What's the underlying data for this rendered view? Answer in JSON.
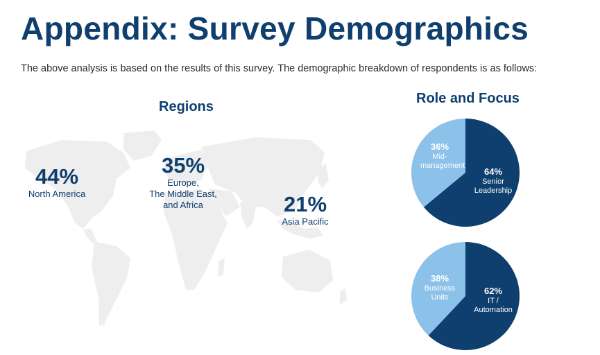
{
  "header": {
    "title": "Appendix: Survey Demographics",
    "subtitle": "The above analysis is based on the results of this survey. The demographic breakdown of respondents is as follows:"
  },
  "regions": {
    "title": "Regions",
    "items": [
      {
        "value": "44%",
        "label": "North America"
      },
      {
        "value": "35%",
        "label": "Europe,\nThe Middle East,\nand Africa"
      },
      {
        "value": "21%",
        "label": "Asia Pacific"
      }
    ]
  },
  "role_focus": {
    "title": "Role and Focus"
  },
  "colors": {
    "title": "#0e3f6e",
    "dark_slice": "#0e3f6e",
    "light_slice": "#8cc1ea",
    "map": "#eeeeee"
  },
  "chart_data": [
    {
      "type": "bar",
      "title": "Regions",
      "categories": [
        "North America",
        "Europe, The Middle East, and Africa",
        "Asia Pacific"
      ],
      "values": [
        44,
        35,
        21
      ],
      "unit": "%"
    },
    {
      "type": "pie",
      "slices": [
        {
          "label": "Mid-\nmanagement",
          "value": 36,
          "display": "36%",
          "color": "#8cc1ea"
        },
        {
          "label": "Senior\nLeadership",
          "value": 64,
          "display": "64%",
          "color": "#0e3f6e"
        }
      ]
    },
    {
      "type": "pie",
      "slices": [
        {
          "label": "Business\nUnits",
          "value": 38,
          "display": "38%",
          "color": "#8cc1ea"
        },
        {
          "label": "IT /\nAutomation",
          "value": 62,
          "display": "62%",
          "color": "#0e3f6e"
        }
      ]
    }
  ]
}
